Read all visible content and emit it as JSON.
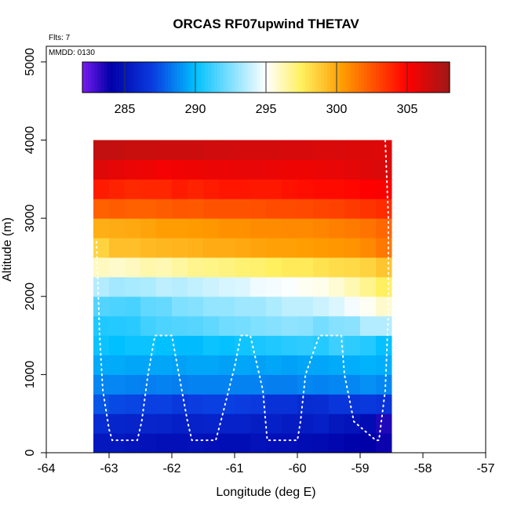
{
  "chart_data": {
    "type": "heatmap",
    "title": "ORCAS RF07upwind THETAV",
    "info": [
      "Flts: 7",
      "MMDD: 0130"
    ],
    "xlabel": "Longitude (deg E)",
    "ylabel": "Altitude (m)",
    "xlim": [
      -64,
      -57
    ],
    "ylim": [
      0,
      5200
    ],
    "xticks": [
      -64,
      -63,
      -62,
      -61,
      -60,
      -59,
      -58,
      -57
    ],
    "yticks": [
      0,
      1000,
      2000,
      3000,
      4000,
      5000
    ],
    "colorbar": {
      "range": [
        282,
        308
      ],
      "ticks": [
        285,
        290,
        295,
        300,
        305
      ],
      "colors": [
        "#7a1cf0",
        "#0000a8",
        "#0a3ce0",
        "#00c0ff",
        "#ffffff",
        "#fff060",
        "#ff9a00",
        "#ff0000",
        "#a01818"
      ],
      "stops": [
        282,
        284,
        287,
        290,
        295,
        297.5,
        300.5,
        305,
        308
      ]
    },
    "grid": {
      "x_edges": [
        -63.25,
        -63.0,
        -62.75,
        -62.5,
        -62.25,
        -62.0,
        -61.75,
        -61.5,
        -61.25,
        -61.0,
        -60.75,
        -60.5,
        -60.25,
        -60.0,
        -59.75,
        -59.5,
        -59.25,
        -59.0,
        -58.75,
        -58.5
      ],
      "y_edges": [
        0,
        250,
        500,
        750,
        1000,
        1250,
        1500,
        1750,
        2000,
        2250,
        2500,
        2750,
        3000,
        3250,
        3500,
        3750,
        4000
      ],
      "values": [
        [
          285.2,
          285.2,
          285.0,
          284.9,
          284.8,
          284.8,
          284.9,
          284.8,
          284.7,
          284.7,
          284.9,
          284.8,
          284.8,
          284.6,
          284.5,
          284.3,
          284.1,
          284.0,
          283.8
        ],
        [
          286.2,
          285.9,
          285.8,
          285.9,
          285.8,
          285.6,
          285.7,
          285.8,
          285.7,
          285.7,
          285.5,
          285.6,
          285.4,
          285.4,
          285.6,
          285.2,
          285.0,
          284.6,
          283.5
        ],
        [
          287.6,
          287.3,
          287.2,
          287.1,
          287.1,
          286.8,
          287.0,
          287.1,
          287.1,
          287.0,
          286.9,
          286.5,
          286.5,
          286.2,
          286.3,
          286.7,
          286.7,
          286.8,
          286.6
        ],
        [
          288.7,
          288.7,
          288.6,
          288.5,
          288.6,
          288.5,
          288.6,
          288.6,
          288.6,
          288.6,
          288.6,
          288.5,
          288.5,
          288.7,
          288.6,
          288.7,
          288.7,
          288.9,
          288.7
        ],
        [
          289.5,
          289.5,
          289.4,
          289.4,
          289.4,
          289.3,
          289.4,
          289.4,
          289.3,
          289.4,
          289.3,
          289.4,
          289.3,
          289.4,
          289.4,
          289.5,
          289.6,
          289.7,
          289.6
        ],
        [
          290.2,
          290.0,
          290.2,
          290.2,
          290.0,
          289.9,
          289.9,
          290.2,
          290.1,
          290.3,
          290.5,
          290.6,
          290.8,
          290.9,
          290.7,
          291.2,
          290.9,
          290.7,
          290.1
        ],
        [
          290.6,
          290.7,
          290.8,
          291.3,
          291.5,
          291.6,
          291.7,
          291.9,
          292.2,
          292.3,
          292.5,
          292.6,
          292.8,
          292.7,
          292.3,
          292.6,
          292.7,
          293.5,
          293.5
        ],
        [
          291.6,
          291.5,
          291.4,
          291.9,
          292.0,
          292.5,
          292.6,
          292.9,
          292.9,
          293.1,
          293.1,
          293.4,
          293.7,
          293.7,
          294.0,
          294.3,
          294.8,
          295.2,
          295.8
        ],
        [
          293.5,
          293.2,
          293.3,
          293.4,
          293.7,
          293.6,
          293.8,
          294.0,
          294.2,
          294.3,
          294.7,
          294.8,
          294.9,
          295.2,
          295.3,
          295.7,
          296.2,
          296.8,
          297.5
        ],
        [
          296.0,
          295.8,
          296.0,
          296.3,
          296.2,
          296.5,
          296.8,
          296.9,
          297.0,
          297.2,
          297.3,
          297.5,
          297.7,
          297.7,
          298.0,
          298.2,
          298.3,
          298.5,
          299.0
        ],
        [
          298.5,
          299.2,
          299.2,
          299.4,
          299.5,
          299.6,
          299.7,
          299.9,
          299.9,
          300.0,
          300.2,
          300.3,
          300.3,
          300.4,
          300.5,
          300.6,
          300.7,
          301.0,
          301.5
        ],
        [
          299.8,
          299.9,
          300.0,
          300.2,
          300.4,
          300.4,
          300.5,
          300.6,
          300.8,
          300.8,
          300.9,
          300.9,
          301.0,
          301.0,
          301.1,
          301.3,
          301.4,
          301.6,
          302.0
        ],
        [
          302.2,
          302.3,
          302.2,
          302.2,
          302.3,
          302.5,
          302.4,
          302.6,
          302.6,
          302.6,
          302.7,
          302.8,
          302.8,
          302.9,
          303.0,
          303.1,
          303.3,
          303.5,
          303.7
        ],
        [
          304.2,
          304.0,
          303.8,
          303.9,
          303.9,
          304.2,
          304.0,
          304.2,
          304.4,
          304.4,
          304.3,
          304.3,
          304.5,
          304.6,
          304.7,
          304.7,
          304.8,
          305.0,
          305.2
        ],
        [
          306.0,
          305.8,
          305.6,
          305.5,
          305.3,
          305.4,
          305.5,
          305.6,
          305.6,
          305.7,
          305.7,
          305.6,
          305.5,
          305.5,
          305.6,
          305.7,
          305.9,
          306.0,
          306.2
        ],
        [
          307.0,
          306.9,
          306.7,
          306.7,
          306.6,
          306.6,
          306.6,
          306.5,
          306.5,
          306.4,
          306.4,
          306.4,
          306.3,
          306.3,
          306.2,
          306.2,
          306.1,
          306.1,
          306.0
        ]
      ]
    },
    "flight_track": {
      "color": "#ffffff",
      "lon": [
        -63.2,
        -63.15,
        -63.1,
        -63.0,
        -62.95,
        -62.55,
        -62.48,
        -62.38,
        -62.27,
        -62.0,
        -61.75,
        -61.68,
        -61.3,
        -61.22,
        -61.0,
        -60.9,
        -60.75,
        -60.55,
        -60.48,
        -60.15,
        -60.0,
        -59.95,
        -59.87,
        -59.65,
        -59.3,
        -59.25,
        -59.1,
        -58.75,
        -58.7,
        -58.6,
        -58.55,
        -58.55,
        -58.6
      ],
      "alt": [
        2700,
        1500,
        800,
        300,
        160,
        160,
        400,
        1000,
        1500,
        1500,
        400,
        160,
        160,
        400,
        1100,
        1500,
        1500,
        800,
        160,
        160,
        160,
        400,
        1000,
        1500,
        1500,
        1000,
        400,
        160,
        160,
        800,
        1800,
        3000,
        4000
      ]
    }
  }
}
